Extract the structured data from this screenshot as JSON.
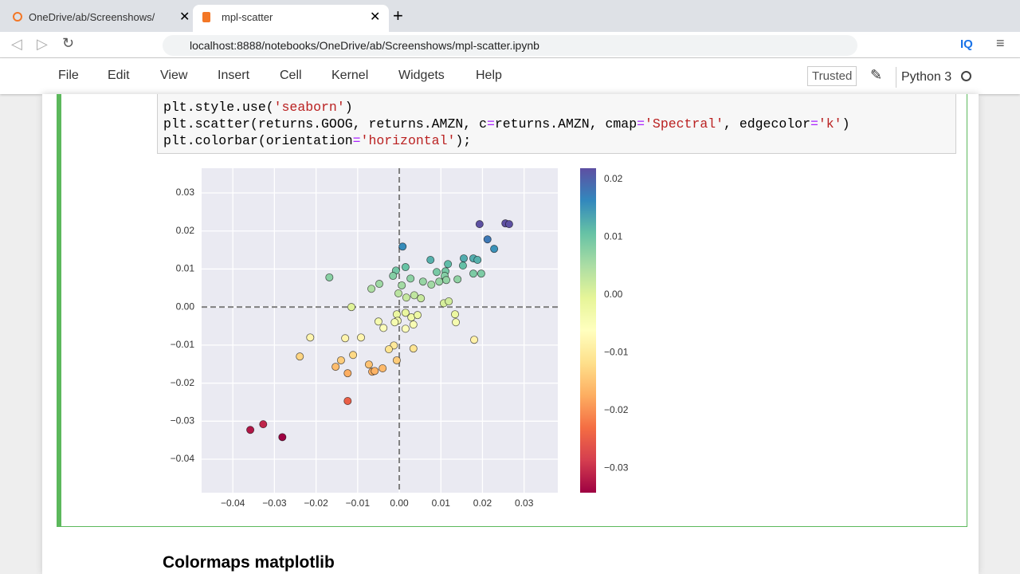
{
  "browser": {
    "tabs": [
      "OneDrive/ab/Screenshows/",
      "mpl-scatter"
    ],
    "url": "localhost:8888/notebooks/OneDrive/ab/Screenshows/mpl-scatter.ipynb",
    "extension": "IQ"
  },
  "notebook": {
    "menu": [
      "File",
      "Edit",
      "View",
      "Insert",
      "Cell",
      "Kernel",
      "Widgets",
      "Help"
    ],
    "trusted": "Trusted",
    "kernel": "Python 3",
    "code": [
      [
        "plt.style.use(",
        "'seaborn'",
        ")"
      ],
      [
        "plt.scatter(returns.GOOG, returns.AMZN, c",
        "=",
        "returns.AMZN, cmap",
        "=",
        "'Spectral'",
        ", edgecolor",
        "=",
        "'k'",
        ")"
      ],
      [
        "plt.colorbar(orientation",
        "=",
        "'horizontal'",
        ");"
      ]
    ],
    "heading": "Colormaps matplotlib"
  },
  "chart_data": {
    "type": "scatter",
    "x": [
      0.0193,
      0.0255,
      0.0264,
      0.0212,
      0.0228,
      0.0008,
      0.0075,
      0.0117,
      0.0155,
      0.0178,
      0.0188,
      0.0153,
      0.0015,
      -0.0008,
      0.009,
      0.0111,
      0.0178,
      0.0197,
      -0.0168,
      -0.0015,
      0.0027,
      0.0057,
      0.0109,
      0.0113,
      0.014,
      0.0096,
      0.0077,
      -0.0048,
      -0.0067,
      0.0006,
      -0.0002,
      0.0017,
      0.0036,
      0.0052,
      -0.0115,
      0.0107,
      0.0119,
      0.0134,
      0.0136,
      -0.0006,
      0.0015,
      0.0029,
      0.0044,
      -0.0004,
      -0.0011,
      -0.005,
      -0.0038,
      0.0034,
      0.0015,
      -0.0214,
      -0.013,
      -0.0092,
      0.018,
      -0.0013,
      -0.0025,
      0.0034,
      -0.0239,
      -0.0111,
      -0.014,
      -0.0006,
      -0.0153,
      -0.0124,
      -0.0073,
      -0.004,
      -0.0065,
      -0.0059,
      -0.0124,
      -0.0327,
      -0.0358,
      -0.0281
    ],
    "y": [
      0.0218,
      0.022,
      0.0218,
      0.0178,
      0.0153,
      0.0159,
      0.0124,
      0.0113,
      0.0128,
      0.0128,
      0.0124,
      0.0109,
      0.0105,
      0.0096,
      0.0092,
      0.0094,
      0.0088,
      0.0088,
      0.0078,
      0.0082,
      0.0075,
      0.0067,
      0.0082,
      0.0071,
      0.0073,
      0.0067,
      0.0059,
      0.0061,
      0.0048,
      0.0057,
      0.0036,
      0.0025,
      0.0031,
      0.0023,
      0.0,
      0.001,
      0.0015,
      -0.0019,
      -0.004,
      -0.0019,
      -0.0015,
      -0.0027,
      -0.0021,
      -0.0036,
      -0.004,
      -0.0038,
      -0.0055,
      -0.0046,
      -0.0057,
      -0.008,
      -0.0082,
      -0.008,
      -0.0086,
      -0.0101,
      -0.0111,
      -0.0109,
      -0.013,
      -0.0126,
      -0.014,
      -0.014,
      -0.0157,
      -0.0174,
      -0.0151,
      -0.0161,
      -0.017,
      -0.0168,
      -0.0247,
      -0.0308,
      -0.0323,
      -0.0342
    ],
    "xlim": [
      -0.0475,
      0.0381
    ],
    "ylim": [
      -0.0488,
      0.0365
    ],
    "xticks": [
      {
        "value": -0.04,
        "label": "−0.04"
      },
      {
        "value": -0.03,
        "label": "−0.03"
      },
      {
        "value": -0.02,
        "label": "−0.02"
      },
      {
        "value": -0.01,
        "label": "−0.01"
      },
      {
        "value": 0,
        "label": "0.00"
      },
      0.01,
      0.02,
      0.03
    ],
    "yticks": [
      0.03,
      0.02,
      0.01,
      {
        "value": 0,
        "label": "0.00"
      },
      {
        "value": -0.01,
        "label": "−0.01"
      },
      {
        "value": -0.02,
        "label": "−0.02"
      },
      {
        "value": -0.03,
        "label": "−0.03"
      },
      {
        "value": -0.04,
        "label": "−0.04"
      }
    ],
    "hlines": [
      0
    ],
    "vlines": [
      0
    ],
    "grid": true,
    "edgecolor": "#000000",
    "colormap": [
      "#9e0142",
      "#d53e4f",
      "#f46d43",
      "#fdae61",
      "#fee08b",
      "#ffffbf",
      "#e6f598",
      "#abdda4",
      "#66c2a5",
      "#3288bd",
      "#5e4fa2"
    ],
    "clim": [
      -0.0342,
      0.0219
    ],
    "cticks": [
      0.02,
      0.01,
      {
        "value": 0,
        "label": "0.00"
      },
      {
        "value": -0.01,
        "label": "−0.01"
      },
      {
        "value": -0.02,
        "label": "−0.02"
      },
      {
        "value": -0.03,
        "label": "−0.03"
      }
    ]
  }
}
